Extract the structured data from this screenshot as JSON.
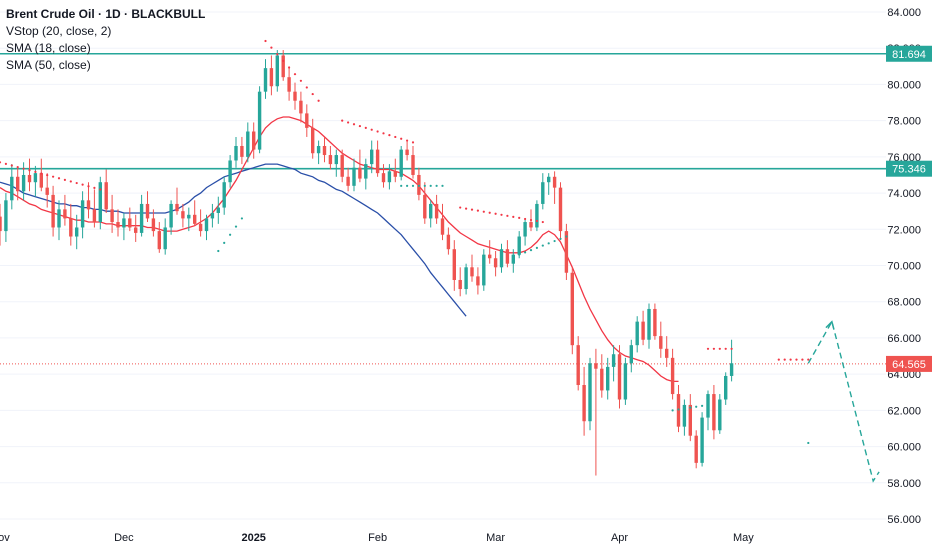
{
  "legend": {
    "title": "Brent Crude Oil · 1D · BLACKBULL",
    "indicators": [
      "VStop (20, close, 2)",
      "SMA (18, close)",
      "SMA (50, close)"
    ]
  },
  "colors": {
    "up": "#26a69a",
    "down": "#ef5350",
    "sma18": "#f23645",
    "sma50": "#2a4fa8",
    "hline": "#26a69a",
    "vstop_up": "#26a69a",
    "vstop_down": "#f23645",
    "forecast": "#26a69a",
    "price_line": "#ef5350"
  },
  "chart_data": {
    "type": "candlestick",
    "ylim": [
      56,
      84
    ],
    "y_ticks": [
      "56.000",
      "58.000",
      "60.000",
      "62.000",
      "64.000",
      "66.000",
      "68.000",
      "70.000",
      "72.000",
      "74.000",
      "76.000",
      "78.000",
      "80.000",
      "82.000",
      "84.000"
    ],
    "x_tick_labels": [
      {
        "label": "Nov",
        "index": 0
      },
      {
        "label": "Dec",
        "index": 21
      },
      {
        "label": "2025",
        "index": 43
      },
      {
        "label": "Feb",
        "index": 64
      },
      {
        "label": "Mar",
        "index": 84
      },
      {
        "label": "Apr",
        "index": 105
      },
      {
        "label": "May",
        "index": 126
      }
    ],
    "horizontal_levels": [
      {
        "value": 81.694,
        "label": "81.694"
      },
      {
        "value": 75.346,
        "label": "75.346"
      }
    ],
    "last_price": {
      "value": 64.565,
      "label": "64.565"
    },
    "ohlc": [
      [
        72.7,
        73.4,
        71.1,
        71.9
      ],
      [
        71.9,
        74.0,
        71.3,
        73.6
      ],
      [
        73.6,
        75.6,
        73.1,
        74.9
      ],
      [
        74.9,
        75.4,
        73.6,
        74.1
      ],
      [
        74.1,
        75.7,
        73.6,
        75.0
      ],
      [
        75.0,
        75.9,
        74.1,
        74.6
      ],
      [
        74.6,
        75.5,
        73.8,
        75.1
      ],
      [
        75.1,
        75.9,
        74.1,
        74.3
      ],
      [
        74.3,
        75.1,
        73.2,
        73.9
      ],
      [
        73.9,
        74.4,
        71.6,
        72.1
      ],
      [
        72.1,
        73.6,
        71.4,
        73.1
      ],
      [
        73.1,
        73.9,
        72.2,
        72.6
      ],
      [
        72.6,
        73.4,
        71.1,
        71.6
      ],
      [
        71.6,
        72.8,
        70.9,
        72.1
      ],
      [
        72.1,
        74.1,
        71.5,
        73.6
      ],
      [
        73.6,
        74.6,
        72.6,
        73.1
      ],
      [
        73.1,
        74.2,
        72.1,
        72.4
      ],
      [
        72.4,
        74.9,
        72.0,
        74.6
      ],
      [
        74.6,
        75.3,
        72.9,
        73.1
      ],
      [
        73.1,
        73.9,
        71.8,
        72.4
      ],
      [
        72.4,
        73.1,
        71.6,
        72.1
      ],
      [
        72.1,
        72.9,
        71.4,
        72.6
      ],
      [
        72.6,
        73.2,
        71.9,
        72.1
      ],
      [
        72.1,
        72.8,
        71.3,
        71.8
      ],
      [
        71.8,
        73.9,
        71.6,
        73.4
      ],
      [
        73.4,
        74.1,
        72.4,
        72.6
      ],
      [
        72.6,
        73.1,
        71.6,
        71.9
      ],
      [
        71.9,
        72.4,
        70.7,
        70.9
      ],
      [
        70.9,
        72.6,
        70.6,
        72.1
      ],
      [
        72.1,
        73.6,
        71.7,
        73.4
      ],
      [
        73.4,
        74.3,
        72.8,
        73.0
      ],
      [
        73.0,
        73.4,
        72.1,
        72.6
      ],
      [
        72.6,
        73.2,
        71.9,
        72.8
      ],
      [
        72.8,
        73.6,
        72.2,
        72.3
      ],
      [
        72.3,
        73.1,
        71.6,
        71.9
      ],
      [
        71.9,
        72.8,
        71.4,
        72.6
      ],
      [
        72.6,
        73.4,
        72.1,
        72.9
      ],
      [
        72.9,
        73.8,
        72.3,
        73.2
      ],
      [
        73.2,
        74.9,
        72.8,
        74.6
      ],
      [
        74.6,
        76.1,
        74.3,
        75.8
      ],
      [
        75.8,
        77.1,
        75.4,
        76.6
      ],
      [
        76.6,
        77.1,
        75.6,
        76.0
      ],
      [
        76.0,
        77.9,
        75.7,
        77.4
      ],
      [
        77.4,
        77.9,
        75.9,
        76.4
      ],
      [
        76.4,
        79.9,
        76.2,
        79.6
      ],
      [
        79.6,
        81.4,
        79.2,
        80.9
      ],
      [
        80.9,
        81.6,
        79.4,
        79.9
      ],
      [
        79.9,
        81.9,
        79.6,
        81.6
      ],
      [
        81.6,
        81.9,
        80.2,
        80.4
      ],
      [
        80.4,
        80.9,
        79.1,
        79.6
      ],
      [
        79.6,
        80.1,
        78.6,
        79.1
      ],
      [
        79.1,
        79.6,
        77.9,
        78.4
      ],
      [
        78.4,
        78.9,
        77.1,
        77.6
      ],
      [
        77.6,
        78.1,
        75.9,
        76.2
      ],
      [
        76.2,
        76.9,
        75.6,
        76.6
      ],
      [
        76.6,
        77.1,
        75.7,
        76.1
      ],
      [
        76.1,
        76.6,
        75.3,
        75.6
      ],
      [
        75.6,
        76.4,
        74.9,
        76.1
      ],
      [
        76.1,
        76.4,
        74.6,
        74.9
      ],
      [
        74.9,
        75.4,
        74.1,
        74.4
      ],
      [
        74.4,
        75.9,
        74.1,
        75.4
      ],
      [
        75.4,
        76.4,
        74.6,
        74.8
      ],
      [
        74.8,
        75.9,
        74.2,
        75.6
      ],
      [
        75.6,
        76.9,
        75.1,
        76.4
      ],
      [
        76.4,
        76.9,
        74.9,
        75.1
      ],
      [
        75.1,
        75.6,
        74.3,
        74.6
      ],
      [
        74.6,
        75.6,
        74.2,
        75.2
      ],
      [
        75.2,
        75.9,
        74.6,
        74.9
      ],
      [
        74.9,
        76.6,
        74.7,
        76.4
      ],
      [
        76.4,
        76.9,
        75.8,
        76.1
      ],
      [
        76.1,
        76.6,
        74.8,
        75.0
      ],
      [
        75.0,
        75.4,
        73.6,
        73.9
      ],
      [
        73.9,
        74.6,
        72.3,
        72.6
      ],
      [
        72.6,
        73.6,
        72.1,
        73.4
      ],
      [
        73.4,
        73.9,
        72.3,
        72.6
      ],
      [
        72.6,
        73.4,
        71.4,
        71.7
      ],
      [
        71.7,
        72.1,
        70.6,
        70.9
      ],
      [
        70.9,
        71.4,
        68.6,
        69.2
      ],
      [
        69.2,
        69.9,
        68.3,
        68.7
      ],
      [
        68.7,
        70.1,
        68.4,
        69.9
      ],
      [
        69.9,
        70.6,
        69.1,
        69.4
      ],
      [
        69.4,
        69.9,
        68.4,
        68.9
      ],
      [
        68.9,
        70.9,
        68.6,
        70.6
      ],
      [
        70.6,
        71.4,
        70.1,
        70.4
      ],
      [
        70.4,
        70.8,
        69.4,
        69.9
      ],
      [
        69.9,
        71.2,
        69.6,
        70.9
      ],
      [
        70.9,
        71.4,
        69.9,
        70.1
      ],
      [
        70.1,
        70.9,
        69.6,
        70.6
      ],
      [
        70.6,
        71.9,
        70.4,
        71.6
      ],
      [
        71.6,
        72.6,
        71.1,
        72.4
      ],
      [
        72.4,
        73.1,
        71.9,
        72.1
      ],
      [
        72.1,
        73.6,
        71.9,
        73.4
      ],
      [
        73.4,
        75.1,
        73.1,
        74.6
      ],
      [
        74.6,
        75.1,
        73.9,
        74.9
      ],
      [
        74.9,
        75.2,
        73.4,
        74.3
      ],
      [
        74.3,
        74.6,
        71.4,
        71.9
      ],
      [
        71.9,
        72.3,
        69.2,
        69.6
      ],
      [
        69.6,
        69.9,
        65.1,
        65.6
      ],
      [
        65.6,
        66.1,
        63.1,
        63.4
      ],
      [
        63.4,
        64.4,
        60.6,
        61.4
      ],
      [
        61.4,
        64.9,
        60.9,
        64.6
      ],
      [
        64.6,
        65.4,
        58.4,
        64.3
      ],
      [
        64.3,
        65.1,
        62.7,
        63.1
      ],
      [
        63.1,
        64.9,
        62.6,
        64.4
      ],
      [
        64.4,
        65.6,
        63.6,
        65.1
      ],
      [
        65.1,
        65.6,
        62.1,
        62.6
      ],
      [
        62.6,
        64.9,
        62.3,
        64.6
      ],
      [
        64.6,
        65.9,
        64.1,
        65.6
      ],
      [
        65.6,
        67.2,
        65.2,
        66.9
      ],
      [
        66.9,
        67.5,
        65.6,
        65.9
      ],
      [
        65.9,
        67.9,
        65.4,
        67.6
      ],
      [
        67.6,
        67.9,
        65.9,
        66.1
      ],
      [
        66.1,
        66.9,
        64.9,
        65.4
      ],
      [
        65.4,
        66.1,
        64.4,
        64.9
      ],
      [
        64.9,
        65.4,
        62.6,
        62.9
      ],
      [
        62.9,
        63.4,
        60.8,
        61.1
      ],
      [
        61.1,
        62.6,
        60.6,
        62.3
      ],
      [
        62.3,
        62.9,
        60.3,
        60.6
      ],
      [
        60.6,
        60.9,
        58.8,
        59.1
      ],
      [
        59.1,
        61.9,
        58.9,
        61.6
      ],
      [
        61.6,
        63.1,
        60.9,
        62.9
      ],
      [
        62.9,
        63.4,
        60.4,
        60.9
      ],
      [
        60.9,
        62.9,
        60.7,
        62.6
      ],
      [
        62.6,
        64.1,
        62.3,
        63.9
      ],
      [
        63.9,
        65.9,
        63.6,
        64.6
      ]
    ],
    "sma18_start": 0,
    "sma18": [
      74.3,
      74.1,
      74.0,
      73.8,
      73.6,
      73.4,
      73.3,
      73.1,
      73.0,
      72.9,
      72.8,
      72.7,
      72.6,
      72.5,
      72.5,
      72.4,
      72.4,
      72.4,
      72.3,
      72.3,
      72.2,
      72.2,
      72.2,
      72.2,
      72.2,
      72.1,
      72.1,
      72.0,
      71.9,
      71.9,
      71.9,
      72.0,
      72.1,
      72.2,
      72.4,
      72.6,
      72.9,
      73.3,
      73.7,
      74.2,
      74.7,
      75.3,
      75.9,
      76.5,
      77.1,
      77.6,
      77.9,
      78.1,
      78.2,
      78.2,
      78.1,
      78.0,
      77.8,
      77.6,
      77.4,
      77.1,
      76.8,
      76.5,
      76.2,
      76.0,
      75.8,
      75.6,
      75.5,
      75.4,
      75.3,
      75.3,
      75.3,
      75.2,
      75.1,
      74.9,
      74.7,
      74.4,
      74.0,
      73.6,
      73.2,
      72.8,
      72.4,
      72.1,
      71.8,
      71.6,
      71.4,
      71.2,
      71.1,
      71.0,
      70.9,
      70.8,
      70.7,
      70.7,
      70.7,
      70.8,
      71.0,
      71.3,
      71.7,
      71.9,
      71.7,
      71.3,
      70.6,
      69.9,
      69.1,
      68.3,
      67.6,
      67.0,
      66.4,
      65.9,
      65.5,
      65.2,
      65.0,
      64.9,
      64.8,
      64.7,
      64.5,
      64.2,
      63.9,
      63.7,
      63.6,
      63.6
    ],
    "sma50_start": 0,
    "sma50": [
      74.6,
      74.5,
      74.4,
      74.2,
      74.0,
      73.9,
      73.8,
      73.7,
      73.6,
      73.5,
      73.4,
      73.4,
      73.3,
      73.3,
      73.2,
      73.2,
      73.1,
      73.1,
      73.0,
      73.0,
      73.0,
      72.9,
      72.9,
      72.9,
      72.9,
      72.9,
      72.9,
      72.9,
      72.9,
      73.0,
      73.1,
      73.3,
      73.5,
      73.8,
      74.0,
      74.3,
      74.5,
      74.7,
      74.9,
      75.0,
      75.1,
      75.2,
      75.3,
      75.4,
      75.5,
      75.6,
      75.6,
      75.6,
      75.5,
      75.4,
      75.3,
      75.1,
      75.0,
      74.9,
      74.7,
      74.6,
      74.4,
      74.2,
      74.1,
      73.9,
      73.7,
      73.5,
      73.3,
      73.1,
      72.9,
      72.6,
      72.3,
      72.0,
      71.7,
      71.3,
      70.9,
      70.5,
      70.1,
      69.6,
      69.2,
      68.8,
      68.4,
      68.0,
      67.6,
      67.2
    ],
    "vstop": [
      {
        "from": 0,
        "to": 17,
        "trend": "down",
        "start": 75.7,
        "end": 74.2
      },
      {
        "from": 37,
        "to": 41,
        "trend": "up",
        "start": 70.8,
        "end": 72.6
      },
      {
        "from": 45,
        "to": 54,
        "trend": "down",
        "start": 82.4,
        "end": 79.1
      },
      {
        "from": 58,
        "to": 70,
        "trend": "down",
        "start": 78.0,
        "end": 76.8
      },
      {
        "from": 68,
        "to": 75,
        "trend": "up",
        "start": 74.4,
        "end": 74.4
      },
      {
        "from": 78,
        "to": 92,
        "trend": "down",
        "start": 73.2,
        "end": 72.4
      },
      {
        "from": 88,
        "to": 96,
        "trend": "up",
        "start": 70.6,
        "end": 71.6
      },
      {
        "from": 114,
        "to": 120,
        "trend": "up",
        "start": 62.0,
        "end": 62.3
      },
      {
        "from": 120,
        "to": 124,
        "trend": "down",
        "start": 65.4,
        "end": 65.4
      },
      {
        "from": 132,
        "to": 137,
        "trend": "down",
        "start": 64.8,
        "end": 64.8
      },
      {
        "from": 137,
        "to": 137,
        "trend": "up",
        "start": 60.2,
        "end": 60.2
      }
    ],
    "forecast": [
      {
        "index": 137,
        "value": 64.6
      },
      {
        "index": 141,
        "value": 66.9
      },
      {
        "index": 148,
        "value": 58.1
      },
      {
        "index": 149,
        "value": 58.6
      }
    ]
  }
}
